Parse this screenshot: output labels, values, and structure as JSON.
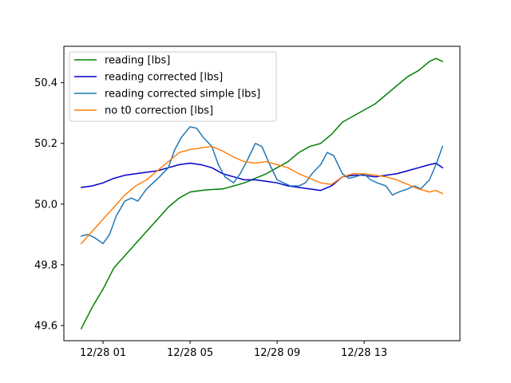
{
  "chart_data": {
    "type": "line",
    "title": "",
    "xlabel": "",
    "ylabel": "",
    "x_unit": "hours since 12/28 00:00",
    "xlim": [
      -0.8,
      17.4
    ],
    "ylim": [
      49.55,
      50.52
    ],
    "x_ticks": [
      {
        "value": 1,
        "label": "12/28 01"
      },
      {
        "value": 5,
        "label": "12/28 05"
      },
      {
        "value": 9,
        "label": "12/28 09"
      },
      {
        "value": 13,
        "label": "12/28 13"
      }
    ],
    "y_ticks": [
      {
        "value": 49.6,
        "label": "49.6"
      },
      {
        "value": 49.8,
        "label": "49.8"
      },
      {
        "value": 50.0,
        "label": "50.0"
      },
      {
        "value": 50.2,
        "label": "50.2"
      },
      {
        "value": 50.4,
        "label": "50.4"
      }
    ],
    "grid": false,
    "legend_position": "top-left",
    "series": [
      {
        "name": "reading [lbs]",
        "color": "#008000",
        "x": [
          0,
          0.5,
          1,
          1.5,
          2,
          2.5,
          3,
          3.5,
          4,
          4.5,
          5,
          5.5,
          6,
          6.5,
          7,
          7.5,
          8,
          8.5,
          9,
          9.5,
          10,
          10.5,
          11,
          11.5,
          12,
          12.5,
          13,
          13.5,
          14,
          14.5,
          15,
          15.5,
          16,
          16.3,
          16.6
        ],
        "y": [
          49.59,
          49.66,
          49.72,
          49.79,
          49.83,
          49.87,
          49.91,
          49.95,
          49.99,
          50.02,
          50.04,
          50.045,
          50.048,
          50.05,
          50.06,
          50.07,
          50.085,
          50.1,
          50.12,
          50.14,
          50.17,
          50.19,
          50.2,
          50.23,
          50.27,
          50.29,
          50.31,
          50.33,
          50.36,
          50.39,
          50.42,
          50.44,
          50.47,
          50.48,
          50.47
        ]
      },
      {
        "name": "reading corrected [lbs]",
        "color": "#0000CC",
        "x": [
          0,
          0.5,
          1,
          1.5,
          2,
          2.5,
          3,
          3.5,
          4,
          4.5,
          5,
          5.5,
          6,
          6.5,
          7,
          7.5,
          8,
          8.5,
          9,
          9.5,
          10,
          10.5,
          11,
          11.5,
          12,
          12.5,
          13,
          13.5,
          14,
          14.5,
          15,
          15.5,
          16,
          16.3,
          16.6
        ],
        "y": [
          50.055,
          50.06,
          50.07,
          50.085,
          50.095,
          50.1,
          50.105,
          50.11,
          50.12,
          50.13,
          50.135,
          50.13,
          50.12,
          50.1,
          50.09,
          50.08,
          50.08,
          50.075,
          50.07,
          50.06,
          50.055,
          50.05,
          50.045,
          50.06,
          50.09,
          50.095,
          50.095,
          50.09,
          50.095,
          50.1,
          50.11,
          50.12,
          50.13,
          50.135,
          50.12
        ]
      },
      {
        "name": "reading corrected simple [lbs]",
        "color": "#1F77B4",
        "x": [
          0,
          0.3,
          0.6,
          1,
          1.3,
          1.6,
          2,
          2.3,
          2.6,
          3,
          3.3,
          3.6,
          4,
          4.3,
          4.6,
          5,
          5.3,
          5.6,
          6,
          6.3,
          6.6,
          7,
          7.3,
          7.6,
          8,
          8.3,
          8.6,
          9,
          9.3,
          9.6,
          10,
          10.3,
          10.6,
          11,
          11.3,
          11.6,
          12,
          12.3,
          12.6,
          13,
          13.3,
          13.6,
          14,
          14.3,
          14.6,
          15,
          15.3,
          15.6,
          16,
          16.3,
          16.6
        ],
        "y": [
          49.895,
          49.9,
          49.89,
          49.87,
          49.9,
          49.96,
          50.01,
          50.02,
          50.01,
          50.05,
          50.07,
          50.09,
          50.12,
          50.18,
          50.22,
          50.255,
          50.25,
          50.22,
          50.19,
          50.13,
          50.09,
          50.07,
          50.1,
          50.14,
          50.2,
          50.19,
          50.14,
          50.08,
          50.07,
          50.06,
          50.06,
          50.07,
          50.1,
          50.13,
          50.17,
          50.16,
          50.1,
          50.085,
          50.09,
          50.1,
          50.08,
          50.07,
          50.06,
          50.03,
          50.04,
          50.05,
          50.06,
          50.05,
          50.08,
          50.13,
          50.19
        ]
      },
      {
        "name": "no t0 correction [lbs]",
        "color": "#FF7F0E",
        "x": [
          0,
          0.5,
          1,
          1.5,
          2,
          2.5,
          3,
          3.5,
          4,
          4.5,
          5,
          5.5,
          6,
          6.5,
          7,
          7.5,
          8,
          8.5,
          9,
          9.5,
          10,
          10.5,
          11,
          11.5,
          12,
          12.5,
          13,
          13.5,
          14,
          14.5,
          15,
          15.5,
          16,
          16.3,
          16.6
        ],
        "y": [
          49.87,
          49.91,
          49.95,
          49.99,
          50.03,
          50.06,
          50.08,
          50.11,
          50.14,
          50.17,
          50.18,
          50.185,
          50.19,
          50.175,
          50.155,
          50.14,
          50.135,
          50.14,
          50.13,
          50.12,
          50.1,
          50.085,
          50.07,
          50.065,
          50.09,
          50.1,
          50.1,
          50.095,
          50.09,
          50.08,
          50.065,
          50.05,
          50.04,
          50.045,
          50.035
        ]
      }
    ]
  }
}
